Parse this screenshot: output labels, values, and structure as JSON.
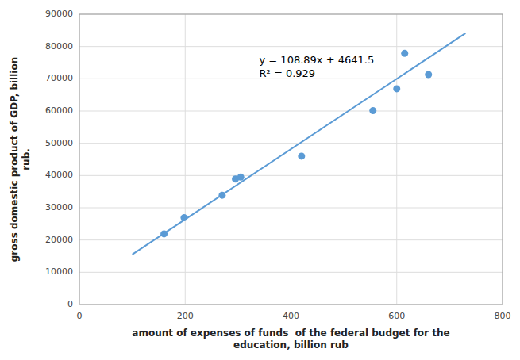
{
  "chart_data": {
    "type": "scatter",
    "xlabel": "amount of expenses of funds  of the federal budget for the\neducation, billion rub",
    "ylabel": "gross domestic product of GDP, billion\nrub.",
    "series": [
      {
        "type": "scatter",
        "color": "#5b9bd5",
        "marker": "circle",
        "x": [
          160,
          198,
          270,
          295,
          305,
          420,
          555,
          600,
          615,
          660
        ],
        "values": [
          21900,
          26900,
          33900,
          38900,
          39500,
          46000,
          60100,
          66900,
          77900,
          71300
        ]
      },
      {
        "type": "line",
        "color": "#5b9bd5",
        "line_style": "solid",
        "x": [
          100,
          730
        ],
        "values": [
          15530.5,
          84131.2
        ]
      }
    ],
    "annotations": [
      {
        "text": "y = 108.89x + 4641.5\nR² = 0.929",
        "x": 340,
        "y": 78000
      }
    ],
    "xlim": [
      0,
      800
    ],
    "ylim": [
      0,
      90000
    ],
    "xticks": [
      0,
      200,
      400,
      600,
      800
    ],
    "yticks": [
      0,
      10000,
      20000,
      30000,
      40000,
      50000,
      60000,
      70000,
      80000,
      90000
    ],
    "grid": true
  }
}
